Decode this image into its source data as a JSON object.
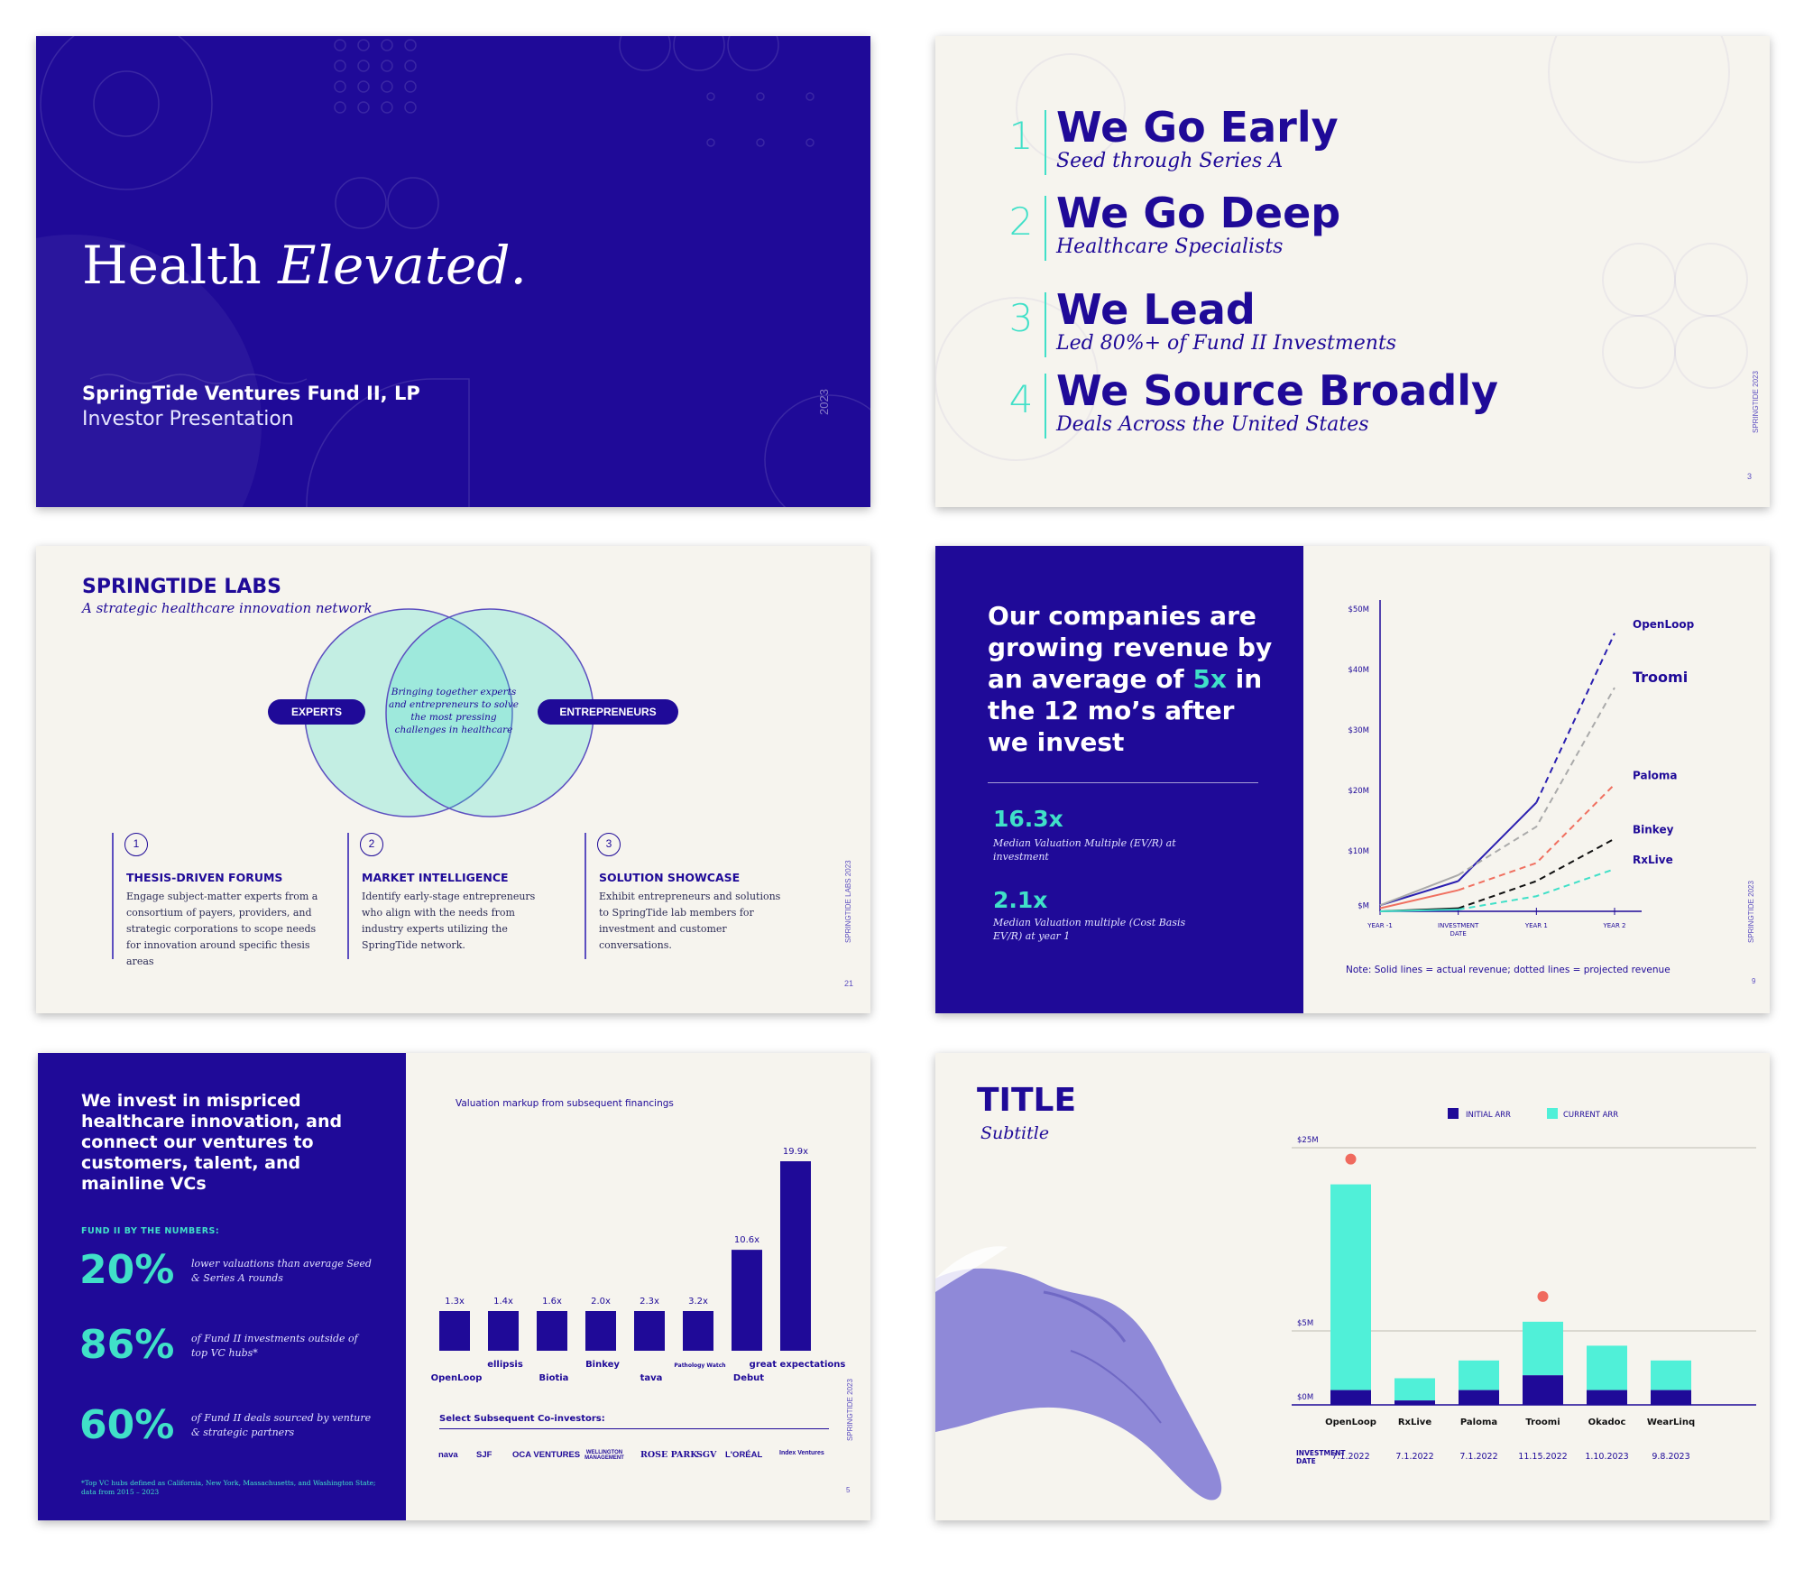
{
  "slide1": {
    "title_regular": "Health ",
    "title_italic": "Elevated.",
    "fund_name": "SpringTide Ventures Fund II, LP",
    "subtitle": "Investor Presentation",
    "year": "2023"
  },
  "slide2": {
    "principles": [
      {
        "number": "1",
        "heading": "We Go Early",
        "sub": "Seed through Series A"
      },
      {
        "number": "2",
        "heading": "We Go Deep",
        "sub": "Healthcare Specialists"
      },
      {
        "number": "3",
        "heading": "We Lead",
        "sub": "Led 80%+ of Fund II Investments"
      },
      {
        "number": "4",
        "heading": "We Source Broadly",
        "sub": "Deals Across the United States"
      }
    ],
    "side_label": "SPRINGTIDE 2023",
    "page": "3"
  },
  "slide3": {
    "heading": "SPRINGTIDE LABS",
    "subheading": "A strategic healthcare innovation network",
    "pill_left": "EXPERTS",
    "pill_right": "ENTREPRENEURS",
    "venn_center": "Bringing together experts and entrepreneurs to solve the most pressing challenges in healthcare",
    "columns": [
      {
        "num": "1",
        "title": "THESIS-DRIVEN FORUMS",
        "desc": "Engage subject-matter experts from a consortium of payers, providers, and strategic corporations to scope needs for innovation around specific thesis areas"
      },
      {
        "num": "2",
        "title": "MARKET INTELLIGENCE",
        "desc": "Identify early-stage entrepreneurs who align with the needs from industry experts utilizing the SpringTide network."
      },
      {
        "num": "3",
        "title": "SOLUTION SHOWCASE",
        "desc": "Exhibit entrepreneurs and solutions to SpringTide lab members for investment and customer conversations."
      }
    ],
    "side_label": "SPRINGTIDE LABS 2023",
    "page": "21"
  },
  "slide4": {
    "headline_pre": "Our companies are growing revenue by an average of ",
    "headline_hl": "5x",
    "headline_post": " in the 12 mo’s after we invest",
    "stats": [
      {
        "value": "16.3x",
        "label": "Median Valuation Multiple (EV/R) at investment"
      },
      {
        "value": "2.1x",
        "label": "Median Valuation multiple (Cost Basis EV/R) at year 1"
      }
    ],
    "note": "Note: Solid lines = actual revenue; dotted lines = projected revenue",
    "side_label": "SPRINGTIDE 2023",
    "page": "9"
  },
  "slide5": {
    "headline": "We invest in mispriced healthcare innovation, and connect our ventures to customers, talent, and mainline VCs",
    "kicker": "FUND II  BY THE NUMBERS:",
    "stats": [
      {
        "value": "20%",
        "label": "lower valuations than average Seed & Series A rounds"
      },
      {
        "value": "86%",
        "label": "of Fund II investments outside of top VC hubs*"
      },
      {
        "value": "60%",
        "label": "of Fund II deals sourced by venture & strategic partners"
      }
    ],
    "footnote": "*Top VC hubs defined as California, New York, Massachusetts, and Washington State; data from 2015 – 2023",
    "chart_title": "Valuation markup from subsequent financings",
    "coinvestors_heading": "Select Subsequent Co-investors:",
    "coinvestors": [
      "nava",
      "SJF",
      "OCA VENTURES",
      "WELLINGTON MANAGEMENT",
      "ROSE PARK",
      "SGV",
      "L'ORÉAL",
      "Index Ventures"
    ],
    "side_label": "SPRINGTIDE 2023",
    "page": "5"
  },
  "slide6": {
    "title": "TITLE",
    "subtitle": "Subtitle"
  },
  "chart_data": [
    {
      "type": "line",
      "x": [
        "YEAR -1",
        "INVESTMENT DATE",
        "YEAR 1",
        "YEAR 2"
      ],
      "y_ticks": [
        "$M",
        "$10M",
        "$20M",
        "$30M",
        "$40M",
        "$50M"
      ],
      "ylim": [
        0,
        50
      ],
      "series": [
        {
          "name": "OpenLoop",
          "color": "#2a1fb0",
          "values": [
            1,
            5,
            18,
            46
          ]
        },
        {
          "name": "Troomi",
          "color": "#aaaaaa",
          "values": [
            1,
            6,
            14,
            37
          ]
        },
        {
          "name": "Paloma",
          "color": "#f07060",
          "values": [
            0.5,
            3.5,
            8,
            21
          ]
        },
        {
          "name": "Binkey",
          "color": "#111111",
          "values": [
            0,
            0.5,
            5,
            12
          ]
        },
        {
          "name": "RxLive",
          "color": "#40e0c8",
          "values": [
            0,
            0.3,
            2.5,
            7
          ]
        }
      ],
      "legend": "right",
      "grid": false
    },
    {
      "type": "bar",
      "title": "Valuation markup from subsequent financings",
      "categories": [
        "OpenLoop",
        "ellipsis",
        "Biotia",
        "Binkey",
        "tava",
        "Pathology Watch",
        "Debut",
        "great expectations"
      ],
      "values": [
        1.3,
        1.4,
        1.6,
        2.0,
        2.3,
        3.2,
        10.6,
        19.9
      ],
      "labels": [
        "1.3x",
        "1.4x",
        "1.6x",
        "2.0x",
        "2.3x",
        "3.2x",
        "10.6x",
        "19.9x"
      ],
      "color": "#1f0a98"
    },
    {
      "type": "bar",
      "stacked": true,
      "categories": [
        "OpenLoop",
        "RxLive",
        "Paloma",
        "Troomi",
        "Okadoc",
        "WearLinq"
      ],
      "investment_dates": [
        "7.1.2022",
        "7.1.2022",
        "7.1.2022",
        "11.15.2022",
        "1.10.2023",
        "9.8.2023"
      ],
      "row_label": "INVESTMENT DATE",
      "y_ticks": [
        "$0M",
        "$5M",
        "$25M"
      ],
      "series": [
        {
          "name": "INITIAL ARR",
          "color": "#1f0a98",
          "values": [
            1,
            0.3,
            1,
            2,
            1,
            1
          ]
        },
        {
          "name": "CURRENT ARR",
          "color": "#50f0d8",
          "values": [
            20,
            1.5,
            2,
            4,
            3,
            2
          ]
        }
      ],
      "highlighted": [
        "OpenLoop",
        "Troomi"
      ],
      "highlight_color": "#f06a5e",
      "legend": "top"
    }
  ]
}
